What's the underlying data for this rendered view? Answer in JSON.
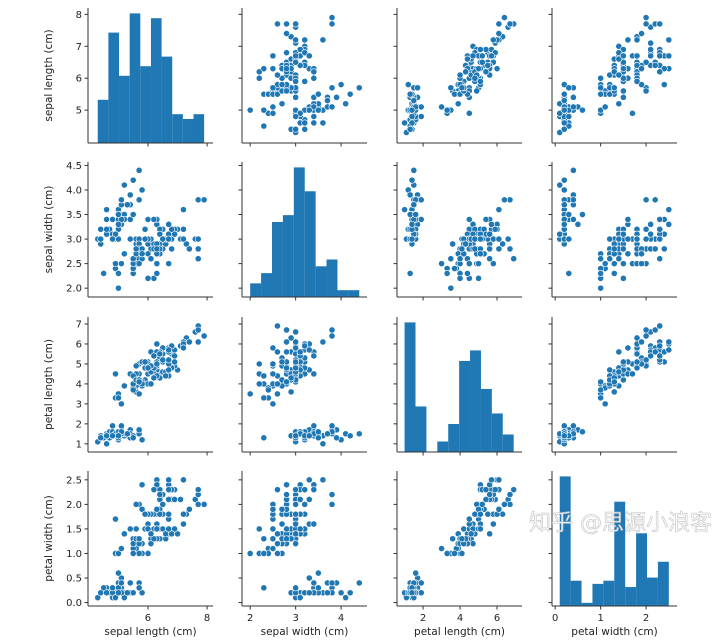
{
  "chart_data": {
    "type": "scatter",
    "title": "",
    "variables": [
      "sepal length (cm)",
      "sepal width (cm)",
      "petal length (cm)",
      "petal width (cm)"
    ],
    "limits": [
      [
        3.97,
        8.2
      ],
      [
        1.82,
        4.57
      ],
      [
        0.59,
        7.35
      ],
      [
        -0.07,
        2.68
      ]
    ],
    "ticks": [
      [
        5,
        6,
        7,
        8
      ],
      [
        2.0,
        2.5,
        3.0,
        3.5,
        4.0,
        4.5
      ],
      [
        1,
        2,
        3,
        4,
        5,
        6,
        7
      ],
      [
        0.0,
        0.5,
        1.0,
        1.5,
        2.0,
        2.5
      ]
    ],
    "x_ticks": [
      [
        6,
        8
      ],
      [
        2,
        3,
        4
      ],
      [
        2,
        4,
        6
      ],
      [
        0,
        1,
        2
      ]
    ],
    "tick_labels": [
      [
        "5",
        "6",
        "7",
        "8"
      ],
      [
        "2.0",
        "2.5",
        "3.0",
        "3.5",
        "4.0",
        "4.5"
      ],
      [
        "1",
        "2",
        "3",
        "4",
        "5",
        "6",
        "7"
      ],
      [
        "0.0",
        "0.5",
        "1.0",
        "1.5",
        "2.0",
        "2.5"
      ]
    ],
    "x_tick_labels": [
      [
        "6",
        "8"
      ],
      [
        "2",
        "3",
        "4"
      ],
      [
        "2",
        "4",
        "6"
      ],
      [
        "0",
        "1",
        "2"
      ]
    ],
    "color": "#1f77b4",
    "diagonal": "histogram",
    "hist_bins": 10,
    "histograms": [
      [
        9,
        23,
        14,
        27,
        16,
        26,
        18,
        6,
        5,
        6
      ],
      [
        4,
        7,
        22,
        24,
        38,
        31,
        9,
        11,
        2,
        2
      ],
      [
        37,
        13,
        0,
        3,
        8,
        26,
        29,
        18,
        11,
        5
      ],
      [
        41,
        8,
        1,
        7,
        8,
        33,
        6,
        23,
        9,
        14
      ]
    ],
    "points": [
      [
        5.1,
        3.5,
        1.4,
        0.2
      ],
      [
        4.9,
        3.0,
        1.4,
        0.2
      ],
      [
        4.7,
        3.2,
        1.3,
        0.2
      ],
      [
        4.6,
        3.1,
        1.5,
        0.2
      ],
      [
        5.0,
        3.6,
        1.4,
        0.2
      ],
      [
        5.4,
        3.9,
        1.7,
        0.4
      ],
      [
        4.6,
        3.4,
        1.4,
        0.3
      ],
      [
        5.0,
        3.4,
        1.5,
        0.2
      ],
      [
        4.4,
        2.9,
        1.4,
        0.2
      ],
      [
        4.9,
        3.1,
        1.5,
        0.1
      ],
      [
        5.4,
        3.7,
        1.5,
        0.2
      ],
      [
        4.8,
        3.4,
        1.6,
        0.2
      ],
      [
        4.8,
        3.0,
        1.4,
        0.1
      ],
      [
        4.3,
        3.0,
        1.1,
        0.1
      ],
      [
        5.8,
        4.0,
        1.2,
        0.2
      ],
      [
        5.7,
        4.4,
        1.5,
        0.4
      ],
      [
        5.4,
        3.9,
        1.3,
        0.4
      ],
      [
        5.1,
        3.5,
        1.4,
        0.3
      ],
      [
        5.7,
        3.8,
        1.7,
        0.3
      ],
      [
        5.1,
        3.8,
        1.5,
        0.3
      ],
      [
        5.4,
        3.4,
        1.7,
        0.2
      ],
      [
        5.1,
        3.7,
        1.5,
        0.4
      ],
      [
        4.6,
        3.6,
        1.0,
        0.2
      ],
      [
        5.1,
        3.3,
        1.7,
        0.5
      ],
      [
        4.8,
        3.4,
        1.9,
        0.2
      ],
      [
        5.0,
        3.0,
        1.6,
        0.2
      ],
      [
        5.0,
        3.4,
        1.6,
        0.4
      ],
      [
        5.2,
        3.5,
        1.5,
        0.2
      ],
      [
        5.2,
        3.4,
        1.4,
        0.2
      ],
      [
        4.7,
        3.2,
        1.6,
        0.2
      ],
      [
        4.8,
        3.1,
        1.6,
        0.2
      ],
      [
        5.4,
        3.4,
        1.5,
        0.4
      ],
      [
        5.2,
        4.1,
        1.5,
        0.1
      ],
      [
        5.5,
        4.2,
        1.4,
        0.2
      ],
      [
        4.9,
        3.1,
        1.5,
        0.1
      ],
      [
        5.0,
        3.2,
        1.2,
        0.2
      ],
      [
        5.5,
        3.5,
        1.3,
        0.2
      ],
      [
        4.9,
        3.1,
        1.5,
        0.1
      ],
      [
        4.4,
        3.0,
        1.3,
        0.2
      ],
      [
        5.1,
        3.4,
        1.5,
        0.2
      ],
      [
        5.0,
        3.5,
        1.3,
        0.3
      ],
      [
        4.5,
        2.3,
        1.3,
        0.3
      ],
      [
        4.4,
        3.2,
        1.3,
        0.2
      ],
      [
        5.0,
        3.5,
        1.6,
        0.6
      ],
      [
        5.1,
        3.8,
        1.9,
        0.4
      ],
      [
        4.8,
        3.0,
        1.4,
        0.3
      ],
      [
        5.1,
        3.8,
        1.6,
        0.2
      ],
      [
        4.6,
        3.2,
        1.4,
        0.2
      ],
      [
        5.3,
        3.7,
        1.5,
        0.2
      ],
      [
        5.0,
        3.3,
        1.4,
        0.2
      ],
      [
        7.0,
        3.2,
        4.7,
        1.4
      ],
      [
        6.4,
        3.2,
        4.5,
        1.5
      ],
      [
        6.9,
        3.1,
        4.9,
        1.5
      ],
      [
        5.5,
        2.3,
        4.0,
        1.3
      ],
      [
        6.5,
        2.8,
        4.6,
        1.5
      ],
      [
        5.7,
        2.8,
        4.5,
        1.3
      ],
      [
        6.3,
        3.3,
        4.7,
        1.6
      ],
      [
        4.9,
        2.4,
        3.3,
        1.0
      ],
      [
        6.6,
        2.9,
        4.6,
        1.3
      ],
      [
        5.2,
        2.7,
        3.9,
        1.4
      ],
      [
        5.0,
        2.0,
        3.5,
        1.0
      ],
      [
        5.9,
        3.0,
        4.2,
        1.5
      ],
      [
        6.0,
        2.2,
        4.0,
        1.0
      ],
      [
        6.1,
        2.9,
        4.7,
        1.4
      ],
      [
        5.6,
        2.9,
        3.6,
        1.3
      ],
      [
        6.7,
        3.1,
        4.4,
        1.4
      ],
      [
        5.6,
        3.0,
        4.5,
        1.5
      ],
      [
        5.8,
        2.7,
        4.1,
        1.0
      ],
      [
        6.2,
        2.2,
        4.5,
        1.5
      ],
      [
        5.6,
        2.5,
        3.9,
        1.1
      ],
      [
        5.9,
        3.2,
        4.8,
        1.8
      ],
      [
        6.1,
        2.8,
        4.0,
        1.3
      ],
      [
        6.3,
        2.5,
        4.9,
        1.5
      ],
      [
        6.1,
        2.8,
        4.7,
        1.2
      ],
      [
        6.4,
        2.9,
        4.3,
        1.3
      ],
      [
        6.6,
        3.0,
        4.4,
        1.4
      ],
      [
        6.8,
        2.8,
        4.8,
        1.4
      ],
      [
        6.7,
        3.0,
        5.0,
        1.7
      ],
      [
        6.0,
        2.9,
        4.5,
        1.5
      ],
      [
        5.7,
        2.6,
        3.5,
        1.0
      ],
      [
        5.5,
        2.4,
        3.8,
        1.1
      ],
      [
        5.5,
        2.4,
        3.7,
        1.0
      ],
      [
        5.8,
        2.7,
        3.9,
        1.2
      ],
      [
        6.0,
        2.7,
        5.1,
        1.6
      ],
      [
        5.4,
        3.0,
        4.5,
        1.5
      ],
      [
        6.0,
        3.4,
        4.5,
        1.6
      ],
      [
        6.7,
        3.1,
        4.7,
        1.5
      ],
      [
        6.3,
        2.3,
        4.4,
        1.3
      ],
      [
        5.6,
        3.0,
        4.1,
        1.3
      ],
      [
        5.5,
        2.5,
        4.0,
        1.3
      ],
      [
        5.5,
        2.6,
        4.4,
        1.2
      ],
      [
        6.1,
        3.0,
        4.6,
        1.4
      ],
      [
        5.8,
        2.6,
        4.0,
        1.2
      ],
      [
        5.0,
        2.3,
        3.3,
        1.0
      ],
      [
        5.6,
        2.7,
        4.2,
        1.3
      ],
      [
        5.7,
        3.0,
        4.2,
        1.2
      ],
      [
        5.7,
        2.9,
        4.2,
        1.3
      ],
      [
        6.2,
        2.9,
        4.3,
        1.3
      ],
      [
        5.1,
        2.5,
        3.0,
        1.1
      ],
      [
        5.7,
        2.8,
        4.1,
        1.3
      ],
      [
        6.3,
        3.3,
        6.0,
        2.5
      ],
      [
        5.8,
        2.7,
        5.1,
        1.9
      ],
      [
        7.1,
        3.0,
        5.9,
        2.1
      ],
      [
        6.3,
        2.9,
        5.6,
        1.8
      ],
      [
        6.5,
        3.0,
        5.8,
        2.2
      ],
      [
        7.6,
        3.0,
        6.6,
        2.1
      ],
      [
        4.9,
        2.5,
        4.5,
        1.7
      ],
      [
        7.3,
        2.9,
        6.3,
        1.8
      ],
      [
        6.7,
        2.5,
        5.8,
        1.8
      ],
      [
        7.2,
        3.6,
        6.1,
        2.5
      ],
      [
        6.5,
        3.2,
        5.1,
        2.0
      ],
      [
        6.4,
        2.7,
        5.3,
        1.9
      ],
      [
        6.8,
        3.0,
        5.5,
        2.1
      ],
      [
        5.7,
        2.5,
        5.0,
        2.0
      ],
      [
        5.8,
        2.8,
        5.1,
        2.4
      ],
      [
        6.4,
        3.2,
        5.3,
        2.3
      ],
      [
        6.5,
        3.0,
        5.5,
        1.8
      ],
      [
        7.7,
        3.8,
        6.7,
        2.2
      ],
      [
        7.7,
        2.6,
        6.9,
        2.3
      ],
      [
        6.0,
        2.2,
        5.0,
        1.5
      ],
      [
        6.9,
        3.2,
        5.7,
        2.3
      ],
      [
        5.6,
        2.8,
        4.9,
        2.0
      ],
      [
        7.7,
        2.8,
        6.7,
        2.0
      ],
      [
        6.3,
        2.7,
        4.9,
        1.8
      ],
      [
        6.7,
        3.3,
        5.7,
        2.1
      ],
      [
        7.2,
        3.2,
        6.0,
        1.8
      ],
      [
        6.2,
        2.8,
        4.8,
        1.8
      ],
      [
        6.1,
        3.0,
        4.9,
        1.8
      ],
      [
        6.4,
        2.8,
        5.6,
        2.1
      ],
      [
        7.2,
        3.0,
        5.8,
        1.6
      ],
      [
        7.4,
        2.8,
        6.1,
        1.9
      ],
      [
        7.9,
        3.8,
        6.4,
        2.0
      ],
      [
        6.4,
        2.8,
        5.6,
        2.2
      ],
      [
        6.3,
        2.8,
        5.1,
        1.5
      ],
      [
        6.1,
        2.6,
        5.6,
        1.4
      ],
      [
        7.7,
        3.0,
        6.1,
        2.3
      ],
      [
        6.3,
        3.4,
        5.6,
        2.4
      ],
      [
        6.4,
        3.1,
        5.5,
        1.8
      ],
      [
        6.0,
        3.0,
        4.8,
        1.8
      ],
      [
        6.9,
        3.1,
        5.4,
        2.1
      ],
      [
        6.7,
        3.1,
        5.6,
        2.4
      ],
      [
        6.9,
        3.1,
        5.1,
        2.3
      ],
      [
        5.8,
        2.7,
        5.1,
        1.9
      ],
      [
        6.8,
        3.2,
        5.9,
        2.3
      ],
      [
        6.7,
        3.3,
        5.7,
        2.5
      ],
      [
        6.7,
        3.0,
        5.2,
        2.3
      ],
      [
        6.3,
        2.5,
        5.0,
        1.9
      ],
      [
        6.5,
        3.0,
        5.2,
        2.0
      ],
      [
        6.2,
        3.4,
        5.4,
        2.3
      ],
      [
        5.9,
        3.0,
        5.1,
        1.8
      ]
    ]
  },
  "watermark": "知乎 @思源小浪客"
}
